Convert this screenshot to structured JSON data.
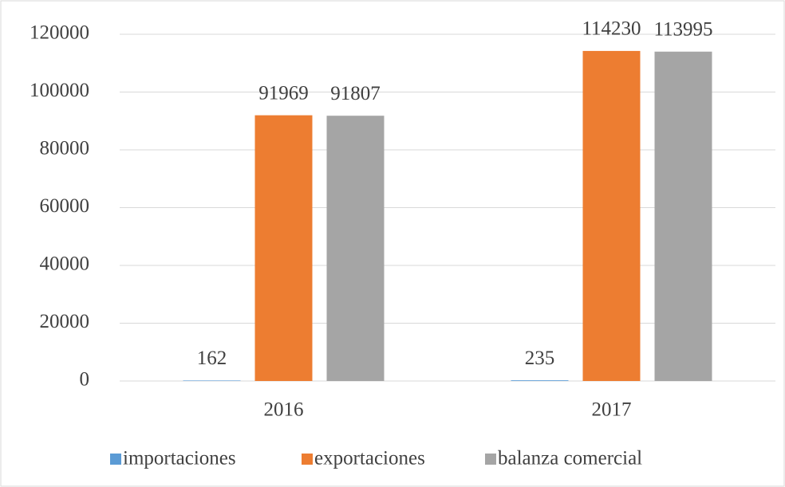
{
  "chart_data": {
    "type": "bar",
    "categories": [
      "2016",
      "2017"
    ],
    "series": [
      {
        "name": "importaciones",
        "color": "#5b9bd5",
        "values": [
          162,
          235
        ]
      },
      {
        "name": "exportaciones",
        "color": "#ed7d31",
        "values": [
          91969,
          114230
        ]
      },
      {
        "name": "balanza comercial",
        "color": "#a5a5a5",
        "values": [
          91807,
          113995
        ]
      }
    ],
    "ylim": [
      0,
      120000
    ],
    "yticks": [
      0,
      20000,
      40000,
      60000,
      80000,
      100000,
      120000
    ],
    "grid": true,
    "legend": "bottom"
  }
}
